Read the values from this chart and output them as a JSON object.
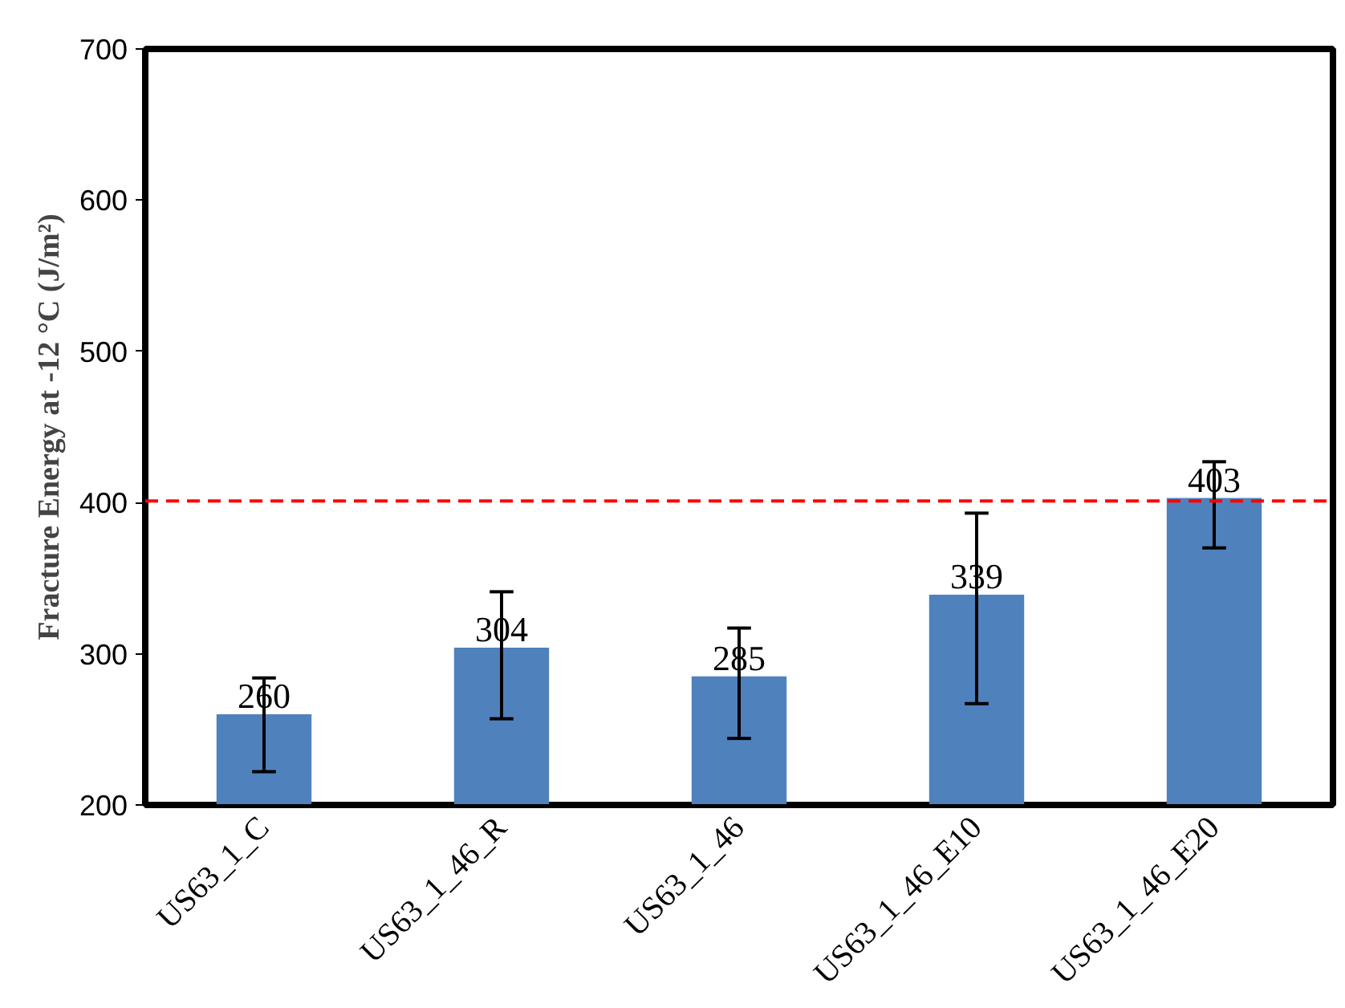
{
  "chart_data": {
    "type": "bar",
    "ylabel": "Fracture Energy at -12 °C (J/m²)",
    "categories": [
      "US63_1_C",
      "US63_1_46_R",
      "US63_1_46",
      "US63_1_46_E10",
      "US63_1_46_E20"
    ],
    "values": [
      260,
      304,
      285,
      339,
      403
    ],
    "color": "#4f81bd",
    "errors": [
      [
        222,
        284
      ],
      [
        257,
        341
      ],
      [
        244,
        317
      ],
      [
        267,
        393
      ],
      [
        370,
        427
      ]
    ],
    "data_labels": true,
    "ylim": [
      200,
      700
    ],
    "yticks": [
      200,
      300,
      400,
      500,
      600,
      700
    ],
    "ref_lines": [
      {
        "axis": "y",
        "value": 401,
        "color": "#ff0000",
        "line_style": "dashed"
      }
    ],
    "grid": false
  }
}
